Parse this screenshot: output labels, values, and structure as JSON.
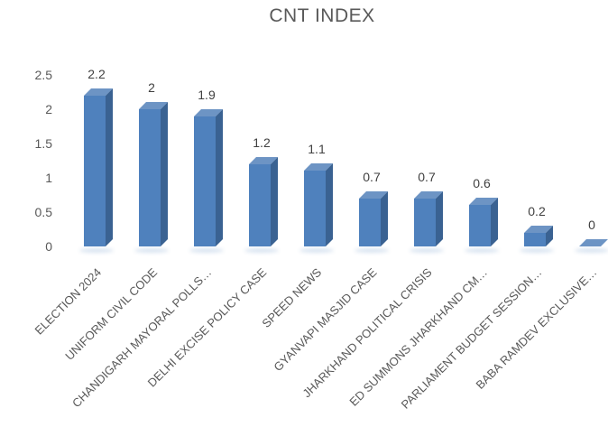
{
  "title": "CNT INDEX",
  "chart_data": {
    "type": "bar",
    "style": "3d-column",
    "title": "CNT INDEX",
    "categories": [
      "ELECTION 2024",
      "UNIFORM CIVIL CODE",
      "CHANDIGARH MAYORAL POLLS…",
      "DELHI EXCISE POLICY CASE",
      "SPEED NEWS",
      "GYANVAPI MASJID CASE",
      "JHARKHAND POLITICAL CRISIS",
      "ED SUMMONS JHARKHAND CM…",
      "PARLIAMENT BUDGET SESSION…",
      "BABA RAMDEV EXCLUSIVE…"
    ],
    "values": [
      2.2,
      2,
      1.9,
      1.2,
      1.1,
      0.7,
      0.7,
      0.6,
      0.2,
      0
    ],
    "value_labels": [
      "2.2",
      "2",
      "1.9",
      "1.2",
      "1.1",
      "0.7",
      "0.7",
      "0.6",
      "0.2",
      "0"
    ],
    "xlabel": "",
    "ylabel": "",
    "ylim": [
      0,
      2.5
    ],
    "yticks": [
      "0",
      "0.5",
      "1",
      "1.5",
      "2",
      "2.5"
    ],
    "grid": false,
    "legend": "none",
    "colors": {
      "bar_front": "#4f81bd",
      "bar_top": "#6d94c4",
      "bar_side": "#3a6292",
      "title_text": "#595959",
      "axis_text": "#595959",
      "value_label_text": "#404040",
      "background": "#ffffff"
    }
  }
}
